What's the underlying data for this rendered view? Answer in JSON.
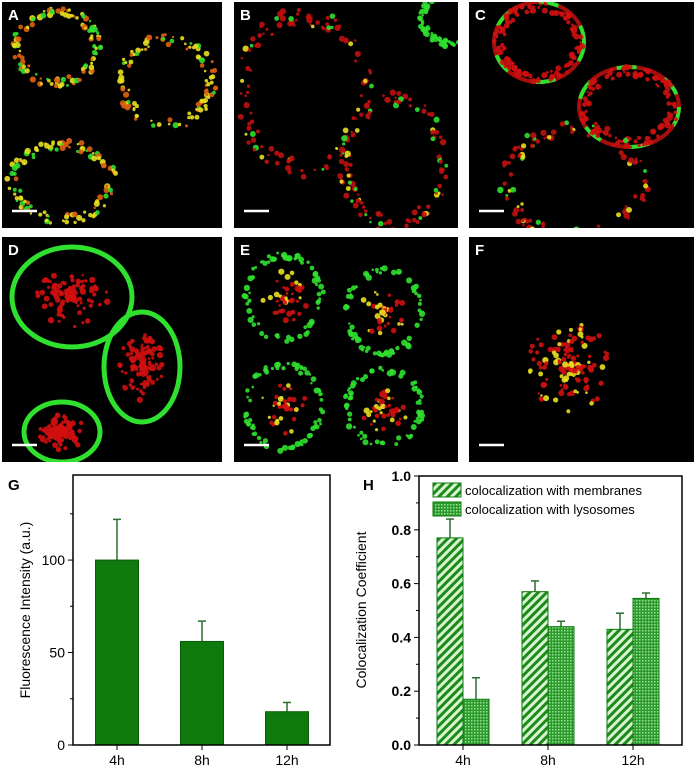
{
  "micrographs": [
    {
      "label": "A"
    },
    {
      "label": "B"
    },
    {
      "label": "C"
    },
    {
      "label": "D"
    },
    {
      "label": "E"
    },
    {
      "label": "F"
    }
  ],
  "colors": {
    "bar": "#0e7a0e",
    "hatch_light": "#c8f0c0",
    "membrane_green": "#2fe02f",
    "lysosome_red": "#d01010",
    "yellow": "#e8e020"
  },
  "chart_data": [
    {
      "panel_label": "G",
      "type": "bar",
      "categories": [
        "4h",
        "8h",
        "12h"
      ],
      "values": [
        100,
        56,
        18
      ],
      "error_upper": [
        122,
        67,
        23
      ],
      "ylabel": "Fluorescence Intensity (a.u.)",
      "xlabel": "",
      "ylim": [
        0,
        146
      ],
      "yticks": [
        "0",
        "50",
        "100"
      ],
      "grid": false
    },
    {
      "panel_label": "H",
      "type": "bar",
      "categories": [
        "4h",
        "8h",
        "12h"
      ],
      "series": [
        {
          "name": "colocalization with membranes",
          "pattern": "diagonal-hatch",
          "values": [
            0.77,
            0.57,
            0.43
          ],
          "error_upper": [
            0.84,
            0.61,
            0.49
          ]
        },
        {
          "name": "colocalization with lysosomes",
          "pattern": "crosshatch",
          "values": [
            0.17,
            0.44,
            0.545
          ],
          "error_upper": [
            0.25,
            0.46,
            0.565
          ]
        }
      ],
      "ylabel": "Colocalization Coefficient",
      "xlabel": "",
      "ylim": [
        0,
        1.0
      ],
      "yticks": [
        "0.0",
        "0.2",
        "0.4",
        "0.6",
        "0.8",
        "1.0"
      ],
      "legend": "top",
      "grid": false
    }
  ]
}
